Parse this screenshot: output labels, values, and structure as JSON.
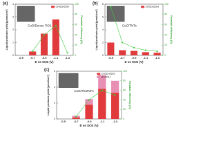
{
  "chart_data": [
    {
      "type": "bar",
      "label": "(a)",
      "annotation": "CuO/Dense TiO2",
      "x_label": "E vs SCE (V)",
      "y_label": "Liquid products yield (μmol/cm²)",
      "y2_label": "Faradaic efficiency (%)",
      "categories": [
        "-0.5",
        "-0.7",
        "-0.9",
        "-1.1",
        "-1.3"
      ],
      "series": [
        {
          "name": "CH3CH2OH",
          "color": "#e03a3c",
          "values": [
            0,
            0.3,
            1.7,
            2.8,
            0
          ]
        },
        {
          "type": "line",
          "axis": "y2",
          "color": "#3fcc3f",
          "values": [
            null,
            8,
            40,
            58,
            5
          ]
        }
      ],
      "ylim": [
        0,
        4
      ],
      "yticks": [
        0,
        1,
        2,
        3,
        4
      ],
      "y2lim": [
        0,
        100
      ],
      "y2ticks": [
        0,
        20,
        40,
        60,
        80,
        100
      ]
    },
    {
      "type": "bar",
      "label": "(b)",
      "annotation": "CuO/TNTs",
      "x_label": "E vs SCE (V)",
      "y_label": "Liquid products yield (μmol/cm²)",
      "y2_label": "Faradaic efficiency (%)",
      "categories": [
        "-0.5",
        "-0.7",
        "-0.9",
        "-1.1",
        "-1.3"
      ],
      "series": [
        {
          "name": "CH3CH2OH",
          "color": "#e03a3c",
          "values": [
            2,
            0.8,
            0.7,
            0.5,
            0.4
          ]
        },
        {
          "type": "line",
          "axis": "y2",
          "color": "#3fcc3f",
          "values": [
            95,
            25,
            15,
            10,
            8
          ]
        }
      ],
      "ylim": [
        0,
        8
      ],
      "yticks": [
        0,
        2,
        4,
        6,
        8
      ],
      "y2lim": [
        0,
        100
      ],
      "y2ticks": [
        0,
        20,
        40,
        60,
        80,
        100
      ]
    },
    {
      "type": "bar",
      "label": "(c)",
      "annotation": "CuO/TiO2NFs",
      "x_label": "E vs SCE (V)",
      "y_label": "Liquid products yield (μmol/cm²)",
      "y2_label": "Faradaic efficiency (%)",
      "categories": [
        "-0.5",
        "-0.7",
        "-0.9",
        "-1.1",
        "-1.3"
      ],
      "series": [
        {
          "name": "CH3CH2OH",
          "color": "#e03a3c",
          "values": [
            0,
            0.2,
            1.8,
            3.8,
            3.3
          ]
        },
        {
          "name": "HCOOH",
          "color": "#e88fb4",
          "values": [
            0,
            0.2,
            0.7,
            1.7,
            1.5
          ]
        },
        {
          "type": "line",
          "axis": "y2",
          "color": "#3fcc3f",
          "values": [
            null,
            5,
            40,
            60,
            50
          ]
        }
      ],
      "ylim": [
        0,
        6
      ],
      "yticks": [
        0,
        2,
        4,
        6
      ],
      "y2lim": [
        0,
        100
      ],
      "y2ticks": [
        0,
        20,
        40,
        60,
        80,
        100
      ]
    }
  ]
}
